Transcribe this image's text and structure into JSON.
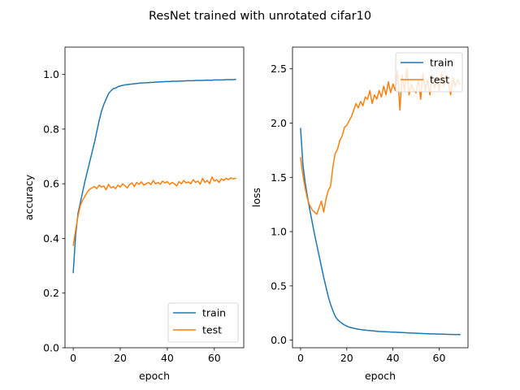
{
  "figure": {
    "title": "ResNet trained with unrotated cifar10"
  },
  "chart_data": [
    {
      "type": "line",
      "xlabel": "epoch",
      "ylabel": "accuracy",
      "xlim": [
        -3.5,
        72.5
      ],
      "ylim": [
        0.0,
        1.1
      ],
      "xticks": [
        0,
        20,
        40,
        60
      ],
      "yticks": [
        0.0,
        0.2,
        0.4,
        0.6,
        0.8,
        1.0
      ],
      "ytick_format": 1,
      "legend_position": "lower right",
      "grid": false,
      "x": [
        0,
        1,
        2,
        3,
        4,
        5,
        6,
        7,
        8,
        9,
        10,
        11,
        12,
        13,
        14,
        15,
        16,
        17,
        18,
        19,
        20,
        21,
        22,
        23,
        24,
        25,
        26,
        27,
        28,
        29,
        30,
        31,
        32,
        33,
        34,
        35,
        36,
        37,
        38,
        39,
        40,
        41,
        42,
        43,
        44,
        45,
        46,
        47,
        48,
        49,
        50,
        51,
        52,
        53,
        54,
        55,
        56,
        57,
        58,
        59,
        60,
        61,
        62,
        63,
        64,
        65,
        66,
        67,
        68,
        69
      ],
      "series": [
        {
          "name": "train",
          "color": "#1f77b4",
          "values": [
            0.275,
            0.41,
            0.49,
            0.53,
            0.57,
            0.61,
            0.645,
            0.68,
            0.715,
            0.75,
            0.79,
            0.83,
            0.865,
            0.89,
            0.91,
            0.93,
            0.94,
            0.948,
            0.95,
            0.955,
            0.958,
            0.96,
            0.962,
            0.963,
            0.964,
            0.965,
            0.966,
            0.967,
            0.968,
            0.969,
            0.969,
            0.97,
            0.97,
            0.971,
            0.971,
            0.972,
            0.972,
            0.973,
            0.973,
            0.974,
            0.974,
            0.974,
            0.975,
            0.975,
            0.975,
            0.976,
            0.976,
            0.976,
            0.977,
            0.977,
            0.977,
            0.977,
            0.978,
            0.978,
            0.978,
            0.978,
            0.979,
            0.979,
            0.979,
            0.979,
            0.98,
            0.98,
            0.98,
            0.98,
            0.98,
            0.981,
            0.981,
            0.981,
            0.981,
            0.982
          ]
        },
        {
          "name": "test",
          "color": "#ff7f0e",
          "values": [
            0.375,
            0.43,
            0.48,
            0.52,
            0.54,
            0.555,
            0.57,
            0.58,
            0.585,
            0.59,
            0.582,
            0.595,
            0.588,
            0.592,
            0.578,
            0.598,
            0.585,
            0.59,
            0.582,
            0.595,
            0.588,
            0.6,
            0.593,
            0.585,
            0.598,
            0.603,
            0.59,
            0.605,
            0.598,
            0.607,
            0.595,
            0.6,
            0.605,
            0.597,
            0.612,
            0.6,
            0.605,
            0.598,
            0.61,
            0.603,
            0.608,
            0.598,
            0.605,
            0.6,
            0.592,
            0.608,
            0.6,
            0.612,
            0.603,
            0.607,
            0.6,
            0.615,
            0.605,
            0.61,
            0.598,
            0.62,
            0.605,
            0.612,
            0.6,
            0.625,
            0.61,
            0.615,
            0.605,
            0.618,
            0.612,
            0.62,
            0.615,
            0.622,
            0.618,
            0.62
          ]
        }
      ]
    },
    {
      "type": "line",
      "xlabel": "epoch",
      "ylabel": "loss",
      "xlim": [
        -3.5,
        72.5
      ],
      "ylim": [
        -0.07,
        2.7
      ],
      "xticks": [
        0,
        20,
        40,
        60
      ],
      "yticks": [
        0.0,
        0.5,
        1.0,
        1.5,
        2.0,
        2.5
      ],
      "ytick_format": 1,
      "legend_position": "upper right",
      "grid": false,
      "x": [
        0,
        1,
        2,
        3,
        4,
        5,
        6,
        7,
        8,
        9,
        10,
        11,
        12,
        13,
        14,
        15,
        16,
        17,
        18,
        19,
        20,
        21,
        22,
        23,
        24,
        25,
        26,
        27,
        28,
        29,
        30,
        31,
        32,
        33,
        34,
        35,
        36,
        37,
        38,
        39,
        40,
        41,
        42,
        43,
        44,
        45,
        46,
        47,
        48,
        49,
        50,
        51,
        52,
        53,
        54,
        55,
        56,
        57,
        58,
        59,
        60,
        61,
        62,
        63,
        64,
        65,
        66,
        67,
        68,
        69
      ],
      "series": [
        {
          "name": "train",
          "color": "#1f77b4",
          "values": [
            1.95,
            1.62,
            1.45,
            1.32,
            1.2,
            1.09,
            0.98,
            0.88,
            0.78,
            0.68,
            0.58,
            0.49,
            0.4,
            0.33,
            0.27,
            0.22,
            0.19,
            0.17,
            0.155,
            0.14,
            0.13,
            0.12,
            0.115,
            0.11,
            0.105,
            0.1,
            0.098,
            0.095,
            0.093,
            0.09,
            0.088,
            0.086,
            0.084,
            0.082,
            0.08,
            0.079,
            0.078,
            0.077,
            0.076,
            0.075,
            0.074,
            0.073,
            0.072,
            0.071,
            0.07,
            0.069,
            0.068,
            0.067,
            0.066,
            0.065,
            0.064,
            0.063,
            0.062,
            0.061,
            0.06,
            0.059,
            0.058,
            0.058,
            0.057,
            0.056,
            0.056,
            0.055,
            0.055,
            0.054,
            0.054,
            0.053,
            0.053,
            0.052,
            0.052,
            0.052
          ]
        },
        {
          "name": "test",
          "color": "#ff7f0e",
          "values": [
            1.68,
            1.52,
            1.4,
            1.3,
            1.24,
            1.2,
            1.18,
            1.16,
            1.22,
            1.28,
            1.18,
            1.3,
            1.38,
            1.42,
            1.6,
            1.72,
            1.76,
            1.84,
            1.88,
            1.96,
            1.98,
            2.02,
            2.06,
            2.12,
            2.18,
            2.14,
            2.2,
            2.16,
            2.24,
            2.22,
            2.3,
            2.18,
            2.26,
            2.22,
            2.3,
            2.24,
            2.34,
            2.26,
            2.38,
            2.28,
            2.36,
            2.3,
            2.48,
            2.12,
            2.44,
            2.3,
            2.5,
            2.26,
            2.36,
            2.3,
            2.28,
            2.4,
            2.22,
            2.46,
            2.3,
            2.4,
            2.26,
            2.44,
            2.32,
            2.42,
            2.3,
            2.46,
            2.34,
            2.44,
            2.36,
            2.26,
            2.42,
            2.34,
            2.4,
            2.36
          ]
        }
      ]
    }
  ]
}
